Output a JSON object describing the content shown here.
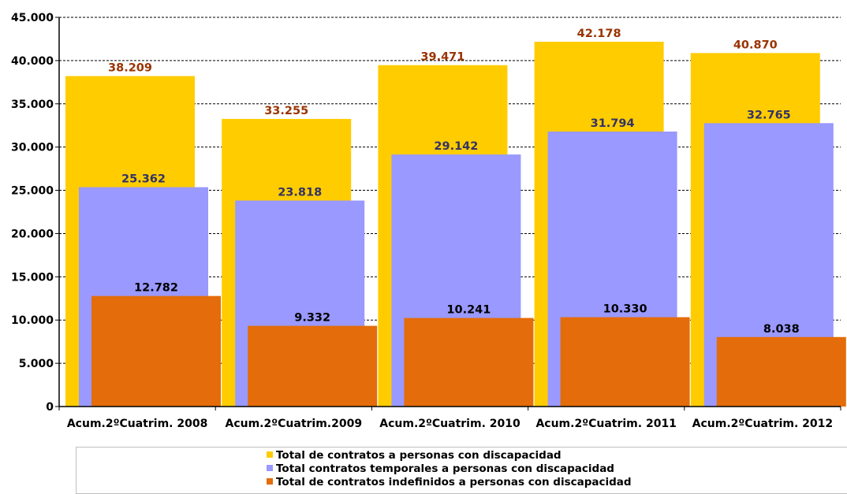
{
  "chart_data": {
    "type": "bar",
    "categories": [
      "Acum.2ºCuatrim. 2008",
      "Acum.2ºCuatrim.2009",
      "Acum.2ºCuatrim. 2010",
      "Acum.2ºCuatrim. 2011",
      "Acum.2ºCuatrim. 2012"
    ],
    "series": [
      {
        "name": "Total de contratos a personas con discapacidad",
        "color": "#ffcc00",
        "label_color": "#993300",
        "values": [
          38209,
          33255,
          39471,
          42178,
          40870
        ],
        "labels": [
          "38.209",
          "33.255",
          "39.471",
          "42.178",
          "40.870"
        ]
      },
      {
        "name": "Total contratos temporales a personas con discapacidad",
        "color": "#9999ff",
        "label_color": "#333366",
        "values": [
          25362,
          23818,
          29142,
          31794,
          32765
        ],
        "labels": [
          "25.362",
          "23.818",
          "29.142",
          "31.794",
          "32.765"
        ]
      },
      {
        "name": "Total de contratos indefinidos a personas con discapacidad",
        "color": "#e46c0a",
        "label_color": "#000000",
        "values": [
          12782,
          9332,
          10241,
          10330,
          8038
        ],
        "labels": [
          "12.782",
          "9.332",
          "10.241",
          "10.330",
          "8.038"
        ]
      }
    ],
    "ylim": [
      0,
      45000
    ],
    "yticks": [
      0,
      5000,
      10000,
      15000,
      20000,
      25000,
      30000,
      35000,
      40000,
      45000
    ],
    "ytick_labels": [
      "0",
      "5.000",
      "10.000",
      "15.000",
      "20.000",
      "25.000",
      "30.000",
      "35.000",
      "40.000",
      "45.000"
    ],
    "grid": "horizontal dashed",
    "legend_position": "bottom",
    "xlabel": "",
    "ylabel": "",
    "title": ""
  }
}
